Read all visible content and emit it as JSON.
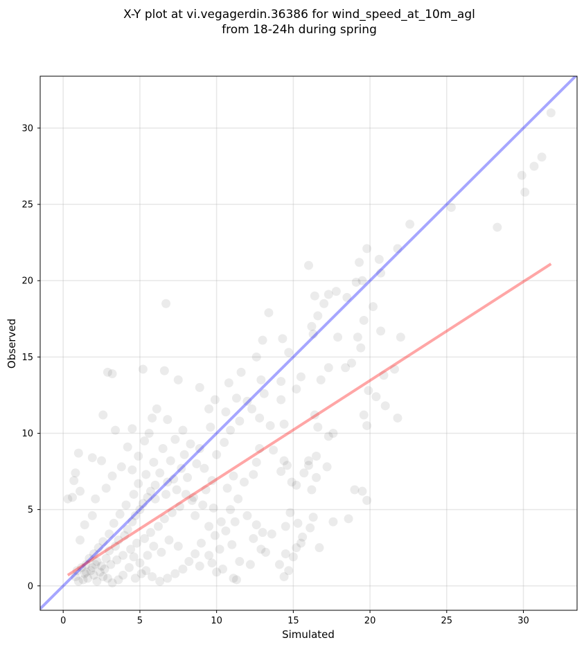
{
  "chart_data": {
    "type": "scatter",
    "title_line1": "X-Y plot at vi.vegagerdin.36386 for wind_speed_at_10m_agl",
    "title_line2": "from 18-24h during spring",
    "xlabel": "Simulated",
    "ylabel": "Observed",
    "xlim": [
      -1.5,
      33.5
    ],
    "ylim": [
      -1.6,
      33.4
    ],
    "xticks": [
      0,
      5,
      10,
      15,
      20,
      25,
      30
    ],
    "yticks": [
      0,
      5,
      10,
      15,
      20,
      25,
      30
    ],
    "grid": true,
    "point_color": "#000000",
    "point_alpha": 0.08,
    "identity_line": {
      "color": "#0000ff",
      "alpha": 0.35,
      "x": [
        -1.5,
        33.5
      ],
      "y": [
        -1.5,
        33.5
      ]
    },
    "fit_line": {
      "color": "#ff0000",
      "alpha": 0.35,
      "x": [
        0.3,
        31.8
      ],
      "y": [
        0.7,
        21.1
      ]
    },
    "points": [
      [
        31.8,
        31.0
      ],
      [
        31.2,
        28.1
      ],
      [
        30.7,
        27.5
      ],
      [
        29.9,
        26.9
      ],
      [
        30.1,
        25.8
      ],
      [
        25.3,
        24.8
      ],
      [
        28.3,
        23.5
      ],
      [
        22.6,
        23.7
      ],
      [
        21.8,
        22.1
      ],
      [
        19.8,
        22.1
      ],
      [
        20.6,
        21.4
      ],
      [
        20.7,
        20.5
      ],
      [
        16.0,
        21.0
      ],
      [
        19.3,
        21.2
      ],
      [
        22.0,
        16.3
      ],
      [
        19.1,
        19.9
      ],
      [
        19.5,
        20.0
      ],
      [
        17.8,
        19.3
      ],
      [
        18.5,
        18.9
      ],
      [
        17.3,
        19.1
      ],
      [
        16.4,
        19.0
      ],
      [
        20.2,
        18.3
      ],
      [
        19.6,
        17.4
      ],
      [
        17.0,
        18.5
      ],
      [
        16.6,
        17.7
      ],
      [
        16.2,
        17.0
      ],
      [
        20.7,
        16.7
      ],
      [
        19.2,
        16.3
      ],
      [
        17.9,
        16.3
      ],
      [
        16.3,
        16.5
      ],
      [
        21.6,
        14.2
      ],
      [
        20.9,
        13.8
      ],
      [
        19.4,
        15.6
      ],
      [
        18.4,
        14.3
      ],
      [
        18.8,
        14.6
      ],
      [
        17.3,
        14.3
      ],
      [
        16.8,
        13.5
      ],
      [
        15.5,
        13.7
      ],
      [
        15.2,
        12.9
      ],
      [
        14.2,
        13.4
      ],
      [
        14.7,
        15.3
      ],
      [
        14.3,
        16.2
      ],
      [
        13.4,
        17.9
      ],
      [
        13.0,
        16.1
      ],
      [
        12.6,
        15.0
      ],
      [
        12.9,
        13.5
      ],
      [
        11.6,
        14.0
      ],
      [
        10.8,
        13.3
      ],
      [
        9.9,
        12.2
      ],
      [
        8.9,
        13.0
      ],
      [
        9.5,
        11.6
      ],
      [
        7.5,
        13.5
      ],
      [
        6.6,
        14.1
      ],
      [
        6.7,
        18.5
      ],
      [
        5.2,
        14.2
      ],
      [
        3.2,
        13.9
      ],
      [
        2.9,
        14.0
      ],
      [
        2.6,
        11.2
      ],
      [
        3.4,
        10.2
      ],
      [
        4.5,
        10.3
      ],
      [
        5.3,
        9.5
      ],
      [
        4.2,
        9.1
      ],
      [
        1.9,
        8.4
      ],
      [
        2.5,
        8.2
      ],
      [
        1.0,
        8.7
      ],
      [
        0.8,
        7.4
      ],
      [
        0.7,
        6.9
      ],
      [
        0.6,
        5.8
      ],
      [
        0.3,
        5.7
      ],
      [
        1.1,
        6.2
      ],
      [
        21.8,
        11.0
      ],
      [
        21.0,
        11.8
      ],
      [
        19.8,
        10.5
      ],
      [
        19.6,
        11.2
      ],
      [
        19.9,
        12.8
      ],
      [
        20.4,
        12.4
      ],
      [
        17.6,
        10.0
      ],
      [
        17.3,
        9.8
      ],
      [
        16.6,
        10.4
      ],
      [
        16.4,
        11.2
      ],
      [
        16.0,
        7.9
      ],
      [
        16.0,
        8.2
      ],
      [
        16.5,
        8.5
      ],
      [
        17.2,
        7.8
      ],
      [
        15.7,
        7.4
      ],
      [
        16.2,
        6.3
      ],
      [
        16.5,
        7.1
      ],
      [
        15.2,
        6.6
      ],
      [
        14.6,
        7.9
      ],
      [
        14.9,
        6.8
      ],
      [
        14.2,
        7.5
      ],
      [
        14.4,
        8.2
      ],
      [
        13.7,
        8.9
      ],
      [
        12.8,
        9.0
      ],
      [
        12.6,
        8.1
      ],
      [
        12.4,
        7.3
      ],
      [
        11.8,
        6.8
      ],
      [
        11.1,
        7.2
      ],
      [
        10.7,
        6.4
      ],
      [
        11.4,
        5.7
      ],
      [
        10.9,
        5.0
      ],
      [
        12.0,
        4.6
      ],
      [
        11.2,
        4.2
      ],
      [
        12.6,
        4.0
      ],
      [
        13.0,
        3.5
      ],
      [
        12.4,
        3.1
      ],
      [
        13.6,
        3.4
      ],
      [
        14.5,
        3.9
      ],
      [
        15.3,
        4.1
      ],
      [
        14.8,
        4.8
      ],
      [
        15.6,
        3.2
      ],
      [
        15.2,
        2.5
      ],
      [
        16.1,
        3.8
      ],
      [
        16.3,
        4.5
      ],
      [
        16.7,
        2.5
      ],
      [
        15.5,
        2.8
      ],
      [
        14.5,
        2.1
      ],
      [
        14.1,
        1.4
      ],
      [
        15.0,
        1.9
      ],
      [
        14.7,
        1.0
      ],
      [
        14.4,
        0.6
      ],
      [
        13.2,
        2.2
      ],
      [
        12.9,
        2.4
      ],
      [
        12.2,
        1.4
      ],
      [
        11.5,
        1.6
      ],
      [
        11.1,
        0.5
      ],
      [
        11.3,
        0.4
      ],
      [
        10.4,
        1.1
      ],
      [
        10.0,
        0.9
      ],
      [
        19.0,
        6.3
      ],
      [
        19.5,
        6.2
      ],
      [
        19.8,
        5.6
      ],
      [
        17.6,
        4.2
      ],
      [
        18.6,
        4.4
      ],
      [
        9.5,
        3.9
      ],
      [
        9.9,
        3.3
      ],
      [
        10.3,
        4.2
      ],
      [
        9.1,
        5.3
      ],
      [
        8.6,
        4.6
      ],
      [
        8.4,
        5.6
      ],
      [
        9.7,
        6.9
      ],
      [
        9.2,
        7.7
      ],
      [
        10.0,
        8.6
      ],
      [
        10.5,
        9.4
      ],
      [
        10.9,
        10.2
      ],
      [
        11.5,
        10.8
      ],
      [
        12.3,
        11.6
      ],
      [
        12.8,
        11.0
      ],
      [
        13.5,
        10.5
      ],
      [
        14.4,
        10.6
      ],
      [
        14.2,
        12.2
      ],
      [
        13.1,
        12.6
      ],
      [
        12.0,
        12.1
      ],
      [
        11.3,
        12.3
      ],
      [
        10.6,
        11.4
      ],
      [
        9.6,
        10.4
      ],
      [
        8.9,
        9.0
      ],
      [
        8.3,
        9.3
      ],
      [
        7.8,
        10.2
      ],
      [
        7.3,
        9.6
      ],
      [
        6.8,
        10.9
      ],
      [
        6.1,
        11.6
      ],
      [
        5.8,
        11.0
      ],
      [
        5.6,
        10.0
      ],
      [
        4.9,
        8.5
      ],
      [
        4.5,
        7.6
      ],
      [
        3.8,
        7.8
      ],
      [
        3.2,
        7.2
      ],
      [
        2.8,
        6.4
      ],
      [
        2.1,
        5.7
      ],
      [
        1.9,
        4.6
      ],
      [
        1.4,
        4.0
      ],
      [
        1.1,
        3.0
      ],
      [
        6.5,
        9.0
      ],
      [
        7.0,
        8.2
      ],
      [
        7.7,
        7.7
      ],
      [
        8.1,
        7.1
      ],
      [
        7.4,
        6.3
      ],
      [
        6.8,
        6.8
      ],
      [
        6.3,
        7.4
      ],
      [
        5.9,
        8.1
      ],
      [
        5.4,
        7.3
      ],
      [
        4.9,
        6.7
      ],
      [
        4.6,
        6.0
      ],
      [
        4.1,
        5.3
      ],
      [
        3.7,
        4.7
      ],
      [
        3.3,
        4.1
      ],
      [
        3.0,
        3.4
      ],
      [
        2.6,
        2.9
      ],
      [
        2.3,
        2.5
      ],
      [
        2.0,
        2.1
      ],
      [
        1.7,
        1.8
      ],
      [
        1.5,
        1.4
      ],
      [
        8.0,
        6.0
      ],
      [
        8.5,
        5.8
      ],
      [
        7.6,
        5.2
      ],
      [
        7.1,
        4.8
      ],
      [
        6.6,
        4.4
      ],
      [
        6.2,
        3.9
      ],
      [
        5.7,
        3.5
      ],
      [
        5.3,
        3.1
      ],
      [
        4.8,
        2.8
      ],
      [
        4.4,
        2.4
      ],
      [
        3.9,
        2.0
      ],
      [
        3.5,
        1.7
      ],
      [
        3.1,
        1.4
      ],
      [
        2.7,
        1.1
      ],
      [
        2.4,
        0.9
      ],
      [
        2.0,
        0.7
      ],
      [
        1.6,
        0.5
      ],
      [
        1.3,
        0.4
      ],
      [
        1.0,
        0.3
      ],
      [
        0.8,
        0.6
      ],
      [
        9.0,
        2.8
      ],
      [
        8.6,
        2.1
      ],
      [
        8.2,
        1.6
      ],
      [
        7.8,
        1.1
      ],
      [
        7.3,
        0.8
      ],
      [
        6.8,
        0.5
      ],
      [
        6.3,
        0.3
      ],
      [
        5.8,
        0.6
      ],
      [
        5.4,
        1.0
      ],
      [
        5.0,
        1.5
      ],
      [
        4.6,
        1.9
      ],
      [
        4.3,
        1.2
      ],
      [
        3.9,
        0.7
      ],
      [
        3.6,
        0.4
      ],
      [
        3.2,
        0.2
      ],
      [
        2.9,
        0.5
      ],
      [
        2.5,
        1.3
      ],
      [
        2.2,
        1.6
      ],
      [
        1.9,
        1.2
      ],
      [
        1.5,
        0.9
      ],
      [
        6.0,
        5.7
      ],
      [
        6.7,
        6.0
      ],
      [
        7.2,
        7.0
      ],
      [
        7.9,
        8.6
      ],
      [
        8.7,
        8.0
      ],
      [
        9.3,
        6.3
      ],
      [
        9.8,
        5.1
      ],
      [
        10.6,
        3.6
      ],
      [
        11.0,
        2.7
      ],
      [
        9.5,
        2.0
      ],
      [
        10.2,
        2.4
      ],
      [
        8.9,
        1.3
      ],
      [
        9.7,
        1.5
      ],
      [
        7.5,
        2.6
      ],
      [
        6.9,
        3.0
      ],
      [
        6.4,
        2.2
      ],
      [
        5.9,
        2.6
      ],
      [
        5.5,
        2.0
      ],
      [
        5.1,
        0.8
      ],
      [
        4.7,
        0.5
      ],
      [
        0.9,
        1.0
      ],
      [
        1.2,
        1.2
      ],
      [
        1.4,
        0.8
      ],
      [
        1.8,
        1.0
      ],
      [
        2.1,
        1.4
      ],
      [
        2.2,
        0.3
      ],
      [
        2.6,
        0.6
      ],
      [
        2.8,
        1.8
      ],
      [
        3.0,
        2.3
      ],
      [
        3.4,
        2.6
      ],
      [
        3.6,
        3.0
      ],
      [
        4.0,
        3.3
      ],
      [
        4.2,
        3.7
      ],
      [
        4.5,
        4.2
      ],
      [
        4.7,
        4.6
      ],
      [
        5.0,
        5.0
      ],
      [
        5.2,
        5.4
      ],
      [
        5.5,
        5.8
      ],
      [
        5.7,
        6.2
      ],
      [
        6.0,
        6.6
      ]
    ]
  }
}
